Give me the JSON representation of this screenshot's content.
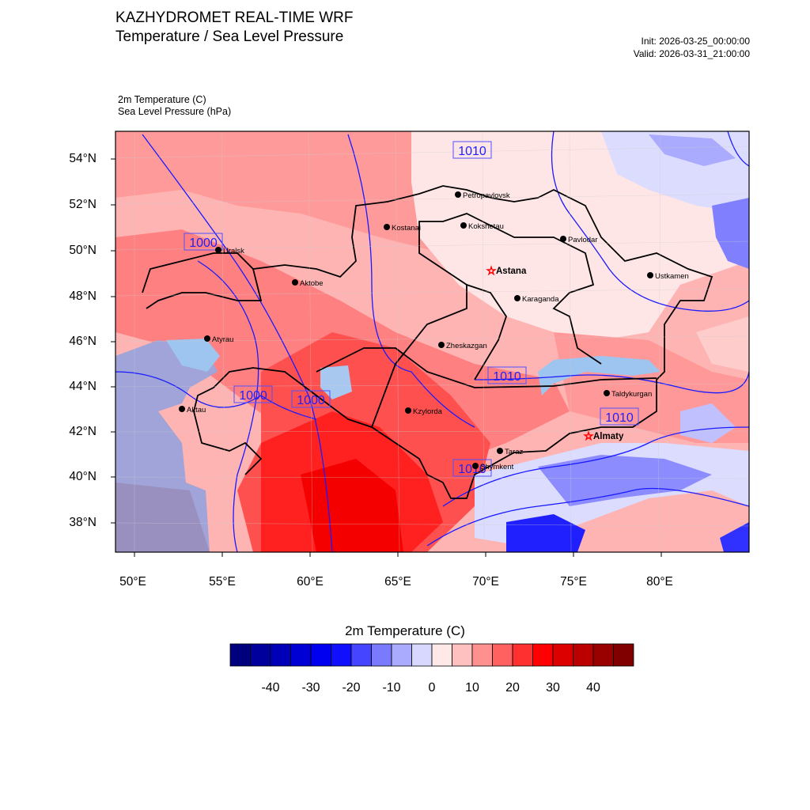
{
  "header": {
    "title": "KAZHYDROMET REAL-TIME WRF",
    "subtitle": "Temperature / Sea Level Pressure",
    "init": "Init: 2026-03-25_00:00:00",
    "valid": "Valid: 2026-03-31_21:00:00"
  },
  "fields": {
    "field1": "2m Temperature   (C)",
    "field2": "Sea Level Pressure   (hPa)"
  },
  "axes": {
    "lon_labels": [
      "50°E",
      "55°E",
      "60°E",
      "65°E",
      "70°E",
      "75°E",
      "80°E"
    ],
    "lat_labels": [
      "54°N",
      "52°N",
      "50°N",
      "48°N",
      "46°N",
      "44°N",
      "42°N",
      "40°N",
      "38°N"
    ]
  },
  "cities": [
    {
      "name": "Petropavlovsk",
      "capital": false
    },
    {
      "name": "Kostanai",
      "capital": false
    },
    {
      "name": "Kokshetau",
      "capital": false
    },
    {
      "name": "Pavlodar",
      "capital": false
    },
    {
      "name": "Uralsk",
      "capital": false
    },
    {
      "name": "Aktobe",
      "capital": false
    },
    {
      "name": "Astana",
      "capital": true
    },
    {
      "name": "Ustkamen",
      "capital": false
    },
    {
      "name": "Karaganda",
      "capital": false
    },
    {
      "name": "Atyrau",
      "capital": false
    },
    {
      "name": "Zheskazgan",
      "capital": false
    },
    {
      "name": "Taldykurgan",
      "capital": false
    },
    {
      "name": "Aktau",
      "capital": false
    },
    {
      "name": "Kzylorda",
      "capital": false
    },
    {
      "name": "Almaty",
      "capital": true
    },
    {
      "name": "Taraz",
      "capital": false
    },
    {
      "name": "Shymkent",
      "capital": false
    }
  ],
  "isobar_labels": [
    "1010",
    "1000",
    "1000",
    "1000",
    "1010",
    "1010",
    "1010"
  ],
  "colorbar": {
    "title": "2m Temperature  (C)",
    "labels": [
      "-40",
      "-30",
      "-20",
      "-10",
      "0",
      "10",
      "20",
      "30",
      "40"
    ],
    "colors": [
      "#00007f",
      "#00009c",
      "#0000b8",
      "#0000d5",
      "#0000f0",
      "#1010ff",
      "#4545ff",
      "#7a7aff",
      "#aaaaff",
      "#d8d8ff",
      "#ffe8e8",
      "#ffc0c0",
      "#ff9090",
      "#ff6060",
      "#ff3030",
      "#ff0000",
      "#dd0000",
      "#bb0000",
      "#990000",
      "#800000"
    ]
  }
}
